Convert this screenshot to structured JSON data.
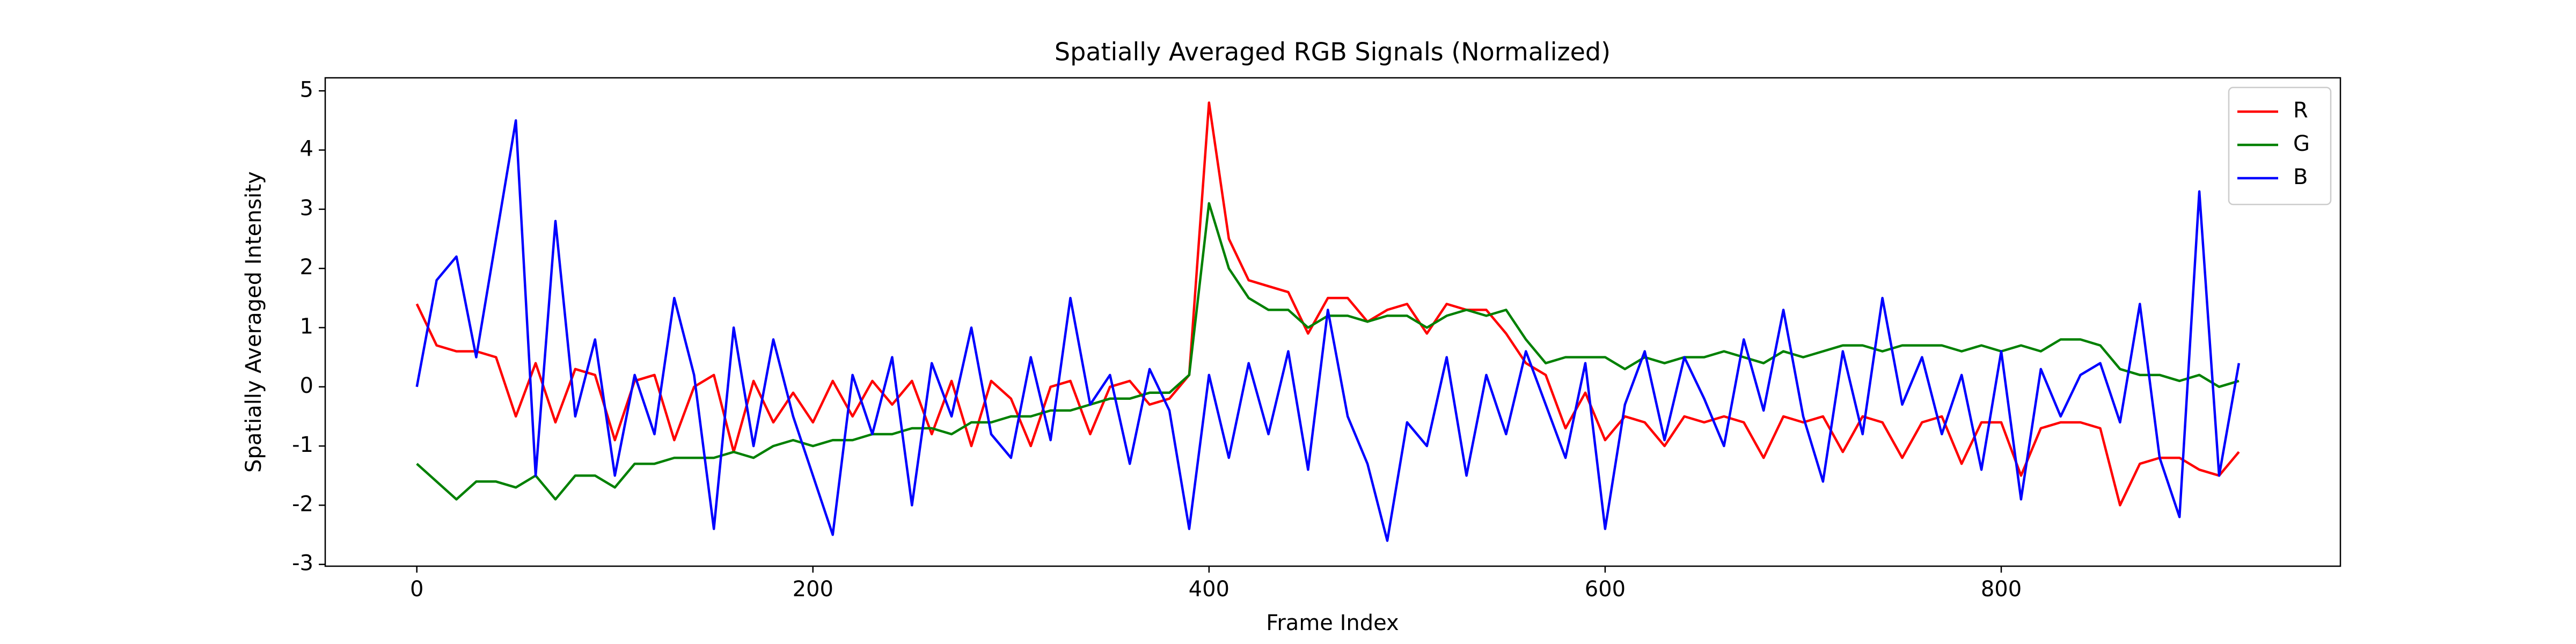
{
  "chart_data": {
    "type": "line",
    "title": "Spatially Averaged RGB Signals (Normalized)",
    "x_label": "Frame Index",
    "y_label": "Spatially Averaged Intensity",
    "xlim": [
      -46.25,
      971.25
    ],
    "xticks": [
      0,
      200,
      400,
      600,
      800
    ],
    "ylim": [
      -3.03,
      5.22
    ],
    "yticks": [
      -3,
      -2,
      -1,
      0,
      1,
      2,
      3,
      4,
      5
    ],
    "grid": false,
    "legend": "upper right",
    "x": [
      0,
      10,
      20,
      30,
      40,
      50,
      60,
      70,
      80,
      90,
      100,
      110,
      120,
      130,
      140,
      150,
      160,
      170,
      180,
      190,
      200,
      210,
      220,
      230,
      240,
      250,
      260,
      270,
      280,
      290,
      300,
      310,
      320,
      330,
      340,
      350,
      360,
      370,
      380,
      390,
      400,
      410,
      420,
      430,
      440,
      450,
      460,
      470,
      480,
      490,
      500,
      510,
      520,
      530,
      540,
      550,
      560,
      570,
      580,
      590,
      600,
      610,
      620,
      630,
      640,
      650,
      660,
      670,
      680,
      690,
      700,
      710,
      720,
      730,
      740,
      750,
      760,
      770,
      780,
      790,
      800,
      810,
      820,
      830,
      840,
      850,
      860,
      870,
      880,
      890,
      900,
      910,
      920
    ],
    "series": [
      {
        "name": "R",
        "color": "#ff0000",
        "values": [
          1.4,
          0.7,
          0.6,
          0.6,
          0.5,
          -0.5,
          0.4,
          -0.6,
          0.3,
          0.2,
          -0.9,
          0.1,
          0.2,
          -0.9,
          0,
          0.2,
          -1.1,
          0.1,
          -0.6,
          -0.1,
          -0.6,
          0.1,
          -0.5,
          0.1,
          -0.3,
          0.1,
          -0.8,
          0.1,
          -1,
          0.1,
          -0.2,
          -1,
          0,
          0.1,
          -0.8,
          0,
          0.1,
          -0.3,
          -0.2,
          0.2,
          4.8,
          2.5,
          1.8,
          1.7,
          1.6,
          0.9,
          1.5,
          1.5,
          1.1,
          1.3,
          1.4,
          0.9,
          1.4,
          1.3,
          1.3,
          0.9,
          0.4,
          0.2,
          -0.7,
          -0.1,
          -0.9,
          -0.5,
          -0.6,
          -1,
          -0.5,
          -0.6,
          -0.5,
          -0.6,
          -1.2,
          -0.5,
          -0.6,
          -0.5,
          -1.1,
          -0.5,
          -0.6,
          -1.2,
          -0.6,
          -0.5,
          -1.3,
          -0.6,
          -0.6,
          -1.5,
          -0.7,
          -0.6,
          -0.6,
          -0.7,
          -2,
          -1.3,
          -1.2,
          -1.2,
          -1.4,
          -1.5,
          -1.1
        ]
      },
      {
        "name": "G",
        "color": "#008000",
        "values": [
          -1.3,
          -1.6,
          -1.9,
          -1.6,
          -1.6,
          -1.7,
          -1.5,
          -1.9,
          -1.5,
          -1.5,
          -1.7,
          -1.3,
          -1.3,
          -1.2,
          -1.2,
          -1.2,
          -1.1,
          -1.2,
          -1.0,
          -0.9,
          -1.0,
          -0.9,
          -0.9,
          -0.8,
          -0.8,
          -0.7,
          -0.7,
          -0.8,
          -0.6,
          -0.6,
          -0.5,
          -0.5,
          -0.4,
          -0.4,
          -0.3,
          -0.2,
          -0.2,
          -0.1,
          -0.1,
          0.2,
          3.1,
          2.0,
          1.5,
          1.3,
          1.3,
          1.0,
          1.2,
          1.2,
          1.1,
          1.2,
          1.2,
          1.0,
          1.2,
          1.3,
          1.2,
          1.3,
          0.8,
          0.4,
          0.5,
          0.5,
          0.5,
          0.3,
          0.5,
          0.4,
          0.5,
          0.5,
          0.6,
          0.5,
          0.4,
          0.6,
          0.5,
          0.6,
          0.7,
          0.7,
          0.6,
          0.7,
          0.7,
          0.7,
          0.6,
          0.7,
          0.6,
          0.7,
          0.6,
          0.8,
          0.8,
          0.7,
          0.3,
          0.2,
          0.2,
          0.1,
          0.2,
          0,
          0.1
        ]
      },
      {
        "name": "B",
        "color": "#0000ff",
        "values": [
          0,
          1.8,
          2.2,
          0.5,
          2.5,
          4.5,
          -1.5,
          2.8,
          -0.5,
          0.8,
          -1.5,
          0.2,
          -0.8,
          1.5,
          0.2,
          -2.4,
          1,
          -1.0,
          0.8,
          -0.5,
          -1.5,
          -2.5,
          0.2,
          -0.8,
          0.5,
          -2.0,
          0.4,
          -0.5,
          1.0,
          -0.8,
          -1.2,
          0.5,
          -0.9,
          1.5,
          -0.3,
          0.2,
          -1.3,
          0.3,
          -0.4,
          -2.4,
          0.2,
          -1.2,
          0.4,
          -0.8,
          0.6,
          -1.4,
          1.3,
          -0.5,
          -1.3,
          -2.6,
          -0.6,
          -1.0,
          0.5,
          -1.5,
          0.2,
          -0.8,
          0.6,
          -0.3,
          -1.2,
          0.4,
          -2.4,
          -0.3,
          0.6,
          -0.9,
          0.5,
          -0.2,
          -1,
          0.8,
          -0.4,
          1.3,
          -0.5,
          -1.6,
          0.6,
          -0.8,
          1.5,
          -0.3,
          0.5,
          -0.8,
          0.2,
          -1.4,
          0.6,
          -1.9,
          0.3,
          -0.5,
          0.2,
          0.4,
          -0.6,
          1.4,
          -1.2,
          -2.2,
          3.3,
          -1.5,
          0.4
        ]
      }
    ]
  }
}
